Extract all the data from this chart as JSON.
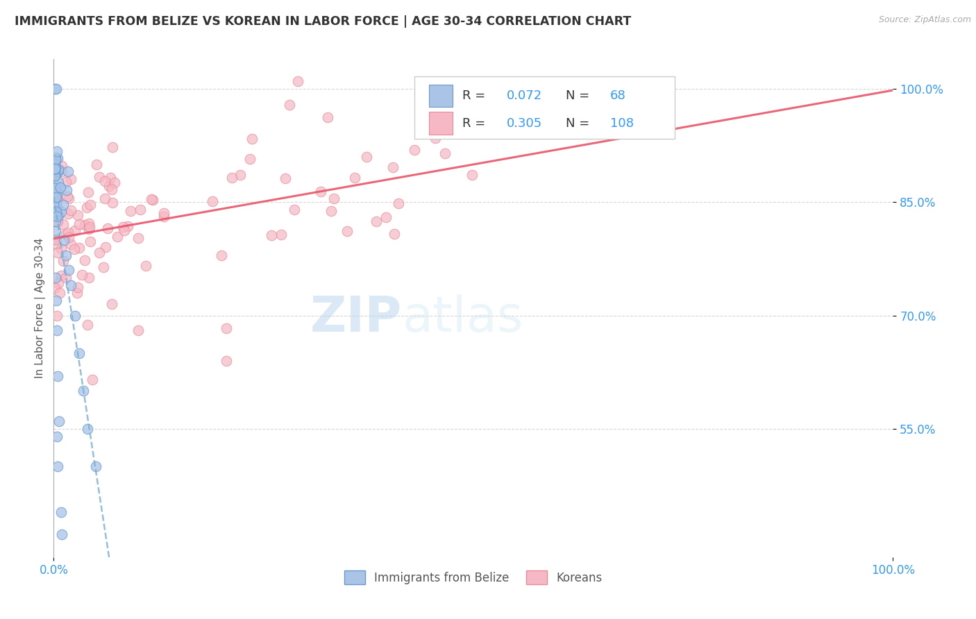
{
  "title": "IMMIGRANTS FROM BELIZE VS KOREAN IN LABOR FORCE | AGE 30-34 CORRELATION CHART",
  "source": "Source: ZipAtlas.com",
  "ylabel": "In Labor Force | Age 30-34",
  "xlim": [
    0.0,
    1.0
  ],
  "ylim": [
    0.38,
    1.04
  ],
  "ytick_labels": [
    "55.0%",
    "70.0%",
    "85.0%",
    "100.0%"
  ],
  "ytick_positions": [
    0.55,
    0.7,
    0.85,
    1.0
  ],
  "belize_color": "#aac4e8",
  "belize_edge": "#6699cc",
  "korean_color": "#f5b8c4",
  "korean_edge": "#e88a9a",
  "belize_line_color": "#7aaed4",
  "korean_line_color": "#e8556a",
  "legend_label_belize": "Immigrants from Belize",
  "legend_label_korean": "Koreans",
  "R_belize": "0.072",
  "N_belize": "68",
  "R_korean": "0.305",
  "N_korean": "108",
  "watermark_zip": "ZIP",
  "watermark_atlas": "atlas"
}
